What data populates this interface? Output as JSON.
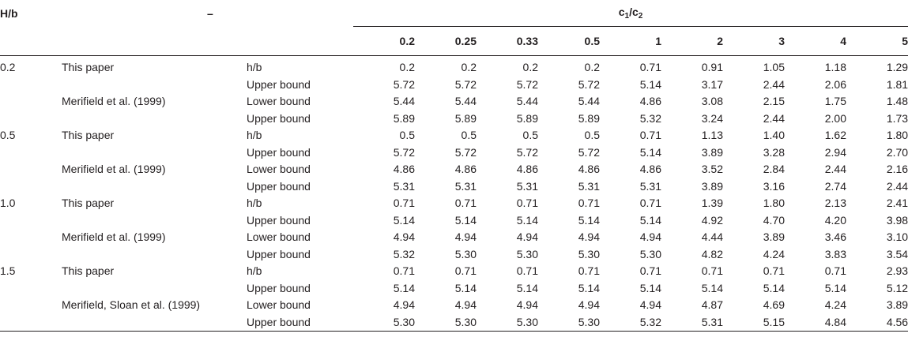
{
  "header": {
    "col_hb": "H/b",
    "col_source": "–",
    "group_label_prefix": "c",
    "group_sub1": "1",
    "group_sep": "/c",
    "group_sub2": "2",
    "ratios": [
      "0.2",
      "0.25",
      "0.33",
      "0.5",
      "1",
      "2",
      "3",
      "4",
      "5"
    ]
  },
  "rows": [
    {
      "hb": "0.2",
      "source": "This paper",
      "type": "h/b",
      "values": [
        "0.2",
        "0.2",
        "0.2",
        "0.2",
        "0.71",
        "0.91",
        "1.05",
        "1.18",
        "1.29"
      ]
    },
    {
      "hb": "",
      "source": "",
      "type": "Upper bound",
      "values": [
        "5.72",
        "5.72",
        "5.72",
        "5.72",
        "5.14",
        "3.17",
        "2.44",
        "2.06",
        "1.81"
      ]
    },
    {
      "hb": "",
      "source": "Merifield et al. (1999)",
      "type": "Lower bound",
      "values": [
        "5.44",
        "5.44",
        "5.44",
        "5.44",
        "4.86",
        "3.08",
        "2.15",
        "1.75",
        "1.48"
      ]
    },
    {
      "hb": "",
      "source": "",
      "type": "Upper bound",
      "values": [
        "5.89",
        "5.89",
        "5.89",
        "5.89",
        "5.32",
        "3.24",
        "2.44",
        "2.00",
        "1.73"
      ]
    },
    {
      "hb": "0.5",
      "source": "This paper",
      "type": "h/b",
      "values": [
        "0.5",
        "0.5",
        "0.5",
        "0.5",
        "0.71",
        "1.13",
        "1.40",
        "1.62",
        "1.80"
      ]
    },
    {
      "hb": "",
      "source": "",
      "type": "Upper bound",
      "values": [
        "5.72",
        "5.72",
        "5.72",
        "5.72",
        "5.14",
        "3.89",
        "3.28",
        "2.94",
        "2.70"
      ]
    },
    {
      "hb": "",
      "source": "Merifield et al. (1999)",
      "type": "Lower bound",
      "values": [
        "4.86",
        "4.86",
        "4.86",
        "4.86",
        "4.86",
        "3.52",
        "2.84",
        "2.44",
        "2.16"
      ]
    },
    {
      "hb": "",
      "source": "",
      "type": "Upper bound",
      "values": [
        "5.31",
        "5.31",
        "5.31",
        "5.31",
        "5.31",
        "3.89",
        "3.16",
        "2.74",
        "2.44"
      ]
    },
    {
      "hb": "1.0",
      "source": "This paper",
      "type": "h/b",
      "values": [
        "0.71",
        "0.71",
        "0.71",
        "0.71",
        "0.71",
        "1.39",
        "1.80",
        "2.13",
        "2.41"
      ]
    },
    {
      "hb": "",
      "source": "",
      "type": "Upper bound",
      "values": [
        "5.14",
        "5.14",
        "5.14",
        "5.14",
        "5.14",
        "4.92",
        "4.70",
        "4.20",
        "3.98"
      ]
    },
    {
      "hb": "",
      "source": "Merifield et al. (1999)",
      "type": "Lower bound",
      "values": [
        "4.94",
        "4.94",
        "4.94",
        "4.94",
        "4.94",
        "4.44",
        "3.89",
        "3.46",
        "3.10"
      ]
    },
    {
      "hb": "",
      "source": "",
      "type": "Upper bound",
      "values": [
        "5.32",
        "5.30",
        "5.30",
        "5.30",
        "5.30",
        "4.82",
        "4.24",
        "3.83",
        "3.54"
      ]
    },
    {
      "hb": "1.5",
      "source": "This paper",
      "type": "h/b",
      "values": [
        "0.71",
        "0.71",
        "0.71",
        "0.71",
        "0.71",
        "0.71",
        "0.71",
        "0.71",
        "2.93"
      ]
    },
    {
      "hb": "",
      "source": "",
      "type": "Upper bound",
      "values": [
        "5.14",
        "5.14",
        "5.14",
        "5.14",
        "5.14",
        "5.14",
        "5.14",
        "5.14",
        "5.12"
      ]
    },
    {
      "hb": "",
      "source": "Merifield, Sloan et al. (1999)",
      "type": "Lower bound",
      "values": [
        "4.94",
        "4.94",
        "4.94",
        "4.94",
        "4.94",
        "4.87",
        "4.69",
        "4.24",
        "3.89"
      ]
    },
    {
      "hb": "",
      "source": "",
      "type": "Upper bound",
      "values": [
        "5.30",
        "5.30",
        "5.30",
        "5.30",
        "5.32",
        "5.31",
        "5.15",
        "4.84",
        "4.56"
      ]
    }
  ]
}
